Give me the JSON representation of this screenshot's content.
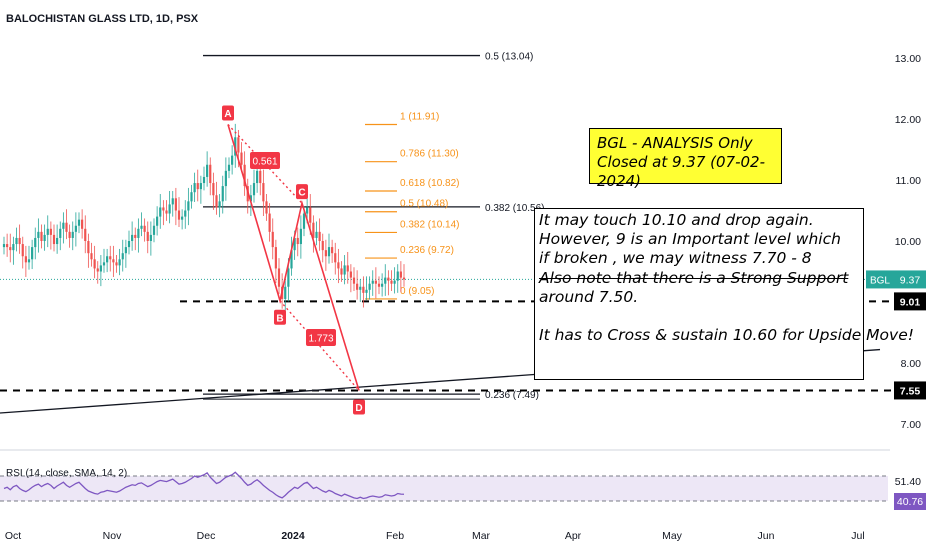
{
  "header": {
    "title": "BALOCHISTAN GLASS LTD, 1D, PSX"
  },
  "notes": {
    "yellow": [
      "BGL - ANALYSIS Only",
      "Closed at 9.37 (07-02-2024)"
    ],
    "analysis": [
      "It may touch 10.10 and drop again.",
      "However, 9 is an Important level which",
      "if broken , we may witness 7.70 - 8",
      "Also note that there is a Strong Support",
      "around 7.50.",
      "",
      "It has to Cross & sustain 10.60 for Upside Move!"
    ]
  },
  "colors": {
    "up": "#26a69a",
    "down": "#ef5350",
    "pattern": "#f23645",
    "fib": "#f7931a",
    "rsi": "#7e57c2",
    "rsi_band": "#ede7f6"
  },
  "chart_data": {
    "type": "candlestick",
    "title": "BALOCHISTAN GLASS LTD, 1D, PSX",
    "symbol": "BGL",
    "interval": "1D",
    "exchange": "PSX",
    "price_axis": {
      "ticks": [
        "13.00",
        "12.00",
        "11.00",
        "10.00",
        "8.00",
        "7.00"
      ],
      "range": [
        6.6,
        13.6
      ]
    },
    "last_price": {
      "label": "BGL",
      "value": "9.37"
    },
    "price_tags": [
      "9.01",
      "7.55"
    ],
    "time_axis": [
      "Oct",
      "Nov",
      "Dec",
      "2024",
      "Feb",
      "Mar",
      "Apr",
      "May",
      "Jun",
      "Jul"
    ],
    "candles_close": [
      9.95,
      9.9,
      9.85,
      9.95,
      10.05,
      9.95,
      9.75,
      9.65,
      9.7,
      9.9,
      10.05,
      10.15,
      10.0,
      10.1,
      10.2,
      10.1,
      9.95,
      10.05,
      10.2,
      10.3,
      10.15,
      10.05,
      10.15,
      10.25,
      10.35,
      10.2,
      10.0,
      9.8,
      9.7,
      9.55,
      9.5,
      9.6,
      9.65,
      9.75,
      9.7,
      9.65,
      9.6,
      9.7,
      9.8,
      9.9,
      10.0,
      10.1,
      10.05,
      10.2,
      10.25,
      10.15,
      10.0,
      10.1,
      10.25,
      10.4,
      10.55,
      10.5,
      10.45,
      10.6,
      10.7,
      10.5,
      10.35,
      10.4,
      10.5,
      10.65,
      10.8,
      10.95,
      10.85,
      10.95,
      11.05,
      11.25,
      10.95,
      10.75,
      10.55,
      10.65,
      10.9,
      11.15,
      11.25,
      11.4,
      11.7,
      11.45,
      11.25,
      10.9,
      10.65,
      10.75,
      10.95,
      11.15,
      10.95,
      10.65,
      10.45,
      10.15,
      9.9,
      9.55,
      9.25,
      9.05,
      9.25,
      9.55,
      9.85,
      10.05,
      9.95,
      10.2,
      10.45,
      10.55,
      10.3,
      10.05,
      10.15,
      10.0,
      9.85,
      9.75,
      9.9,
      9.8,
      9.65,
      9.55,
      9.45,
      9.6,
      9.5,
      9.4,
      9.3,
      9.2,
      9.25,
      9.15,
      9.2,
      9.3,
      9.35,
      9.3,
      9.25,
      9.3,
      9.4,
      9.35,
      9.3,
      9.35,
      9.5,
      9.4,
      9.37
    ],
    "fib_left": [
      {
        "label": "0.5 (13.04)",
        "value": 13.04
      },
      {
        "label": "0.382 (10.56)",
        "value": 10.56
      },
      {
        "label": "0.236 (7.49)",
        "value": 7.49
      }
    ],
    "fib_right": [
      {
        "label": "1 (11.91)",
        "value": 11.91
      },
      {
        "label": "0.786 (11.30)",
        "value": 11.3
      },
      {
        "label": "0.618 (10.82)",
        "value": 10.82
      },
      {
        "label": "0.5 (10.48)",
        "value": 10.48
      },
      {
        "label": "0.382 (10.14)",
        "value": 10.14
      },
      {
        "label": "0.236 (9.72)",
        "value": 9.72
      },
      {
        "label": "0 (9.05)",
        "value": 9.05
      }
    ],
    "horizontal_levels": [
      9.01,
      7.55
    ],
    "trendline": {
      "from_price": 7.18,
      "to_price": 8.22
    },
    "abcd_pattern": {
      "points": [
        {
          "label": "A",
          "price": 11.91
        },
        {
          "label": "B",
          "price": 9.02
        },
        {
          "label": "C",
          "price": 10.62
        },
        {
          "label": "D",
          "price": 7.55
        }
      ],
      "ratios": [
        "0.561",
        "1.773"
      ]
    },
    "rsi": {
      "label": "RSI (14, close, SMA, 14, 2)",
      "levels": [
        "51.40",
        "40.76"
      ],
      "band": [
        30,
        70
      ],
      "values": [
        50,
        52,
        48,
        53,
        55,
        50,
        47,
        45,
        48,
        52,
        55,
        57,
        53,
        56,
        58,
        55,
        50,
        54,
        57,
        60,
        55,
        52,
        55,
        58,
        60,
        55,
        50,
        46,
        44,
        42,
        41,
        44,
        45,
        47,
        46,
        45,
        44,
        46,
        49,
        52,
        54,
        56,
        55,
        58,
        59,
        56,
        53,
        55,
        58,
        61,
        63,
        62,
        61,
        63,
        65,
        61,
        57,
        58,
        60,
        63,
        66,
        70,
        68,
        70,
        72,
        75,
        68,
        63,
        58,
        60,
        64,
        68,
        70,
        72,
        76,
        71,
        66,
        60,
        55,
        57,
        61,
        64,
        60,
        55,
        51,
        47,
        44,
        40,
        37,
        35,
        39,
        44,
        48,
        52,
        50,
        54,
        58,
        60,
        55,
        50,
        52,
        49,
        46,
        44,
        47,
        45,
        42,
        40,
        38,
        41,
        39,
        37,
        35,
        34,
        36,
        34,
        35,
        37,
        38,
        37,
        36,
        37,
        40,
        39,
        38,
        39,
        42,
        41,
        40.76
      ]
    }
  }
}
